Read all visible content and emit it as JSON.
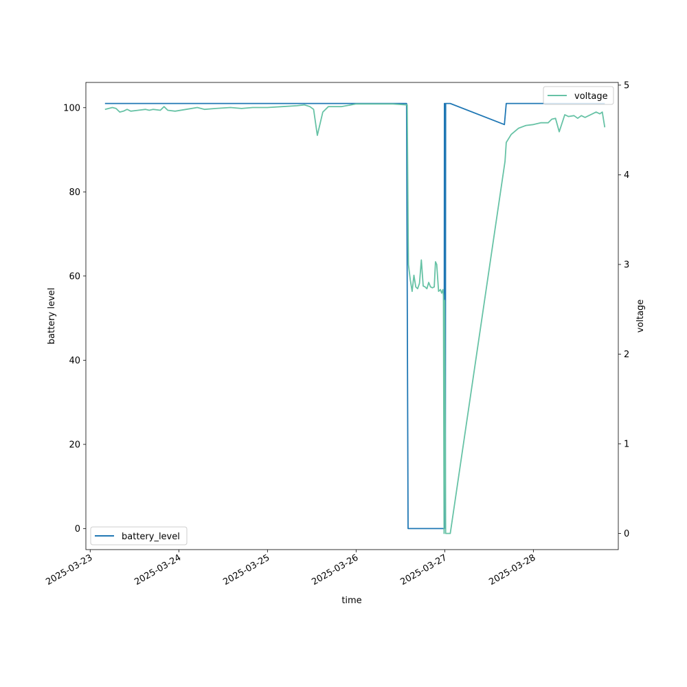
{
  "chart_data": {
    "type": "line",
    "xlabel": "time",
    "x_axis": {
      "type": "date",
      "range": [
        "2025-03-22T22:50",
        "2025-03-28T23:00"
      ],
      "tick_labels": [
        "2025-03-23",
        "2025-03-24",
        "2025-03-25",
        "2025-03-26",
        "2025-03-27",
        "2025-03-28"
      ],
      "tick_dates": [
        "2025-03-23T00:00",
        "2025-03-24T00:00",
        "2025-03-25T00:00",
        "2025-03-26T00:00",
        "2025-03-27T00:00",
        "2025-03-28T00:00"
      ]
    },
    "y_left": {
      "label": "battery level",
      "range": [
        -5,
        106
      ],
      "ticks": [
        0,
        20,
        40,
        60,
        80,
        100
      ]
    },
    "y_right": {
      "label": "voltage",
      "range": [
        -0.18,
        5.03
      ],
      "ticks": [
        0,
        1,
        2,
        3,
        4,
        5
      ]
    },
    "grid": false,
    "series": [
      {
        "name": "battery_level",
        "axis": "left",
        "color": "#1f77b4",
        "legend_position": "lower-left",
        "points": [
          [
            "2025-03-23T04:00",
            101
          ],
          [
            "2025-03-26T13:40",
            101
          ],
          [
            "2025-03-26T14:05",
            0
          ],
          [
            "2025-03-26T23:50",
            0
          ],
          [
            "2025-03-26T23:55",
            101
          ],
          [
            "2025-03-27T00:05",
            101
          ],
          [
            "2025-03-27T00:10",
            0
          ],
          [
            "2025-03-27T00:15",
            101
          ],
          [
            "2025-03-27T01:30",
            101
          ],
          [
            "2025-03-27T16:10",
            96
          ],
          [
            "2025-03-27T16:40",
            101
          ],
          [
            "2025-03-28T19:20",
            101
          ]
        ]
      },
      {
        "name": "voltage",
        "axis": "right",
        "color": "#66c2a5",
        "legend_position": "upper-right",
        "points": [
          [
            "2025-03-23T04:00",
            4.73
          ],
          [
            "2025-03-23T06:00",
            4.75
          ],
          [
            "2025-03-23T07:00",
            4.74
          ],
          [
            "2025-03-23T08:00",
            4.7
          ],
          [
            "2025-03-23T09:00",
            4.71
          ],
          [
            "2025-03-23T10:00",
            4.73
          ],
          [
            "2025-03-23T11:00",
            4.71
          ],
          [
            "2025-03-23T13:00",
            4.72
          ],
          [
            "2025-03-23T15:00",
            4.73
          ],
          [
            "2025-03-23T16:00",
            4.72
          ],
          [
            "2025-03-23T17:00",
            4.73
          ],
          [
            "2025-03-23T19:00",
            4.72
          ],
          [
            "2025-03-23T20:00",
            4.76
          ],
          [
            "2025-03-23T21:00",
            4.72
          ],
          [
            "2025-03-23T23:00",
            4.71
          ],
          [
            "2025-03-24T02:00",
            4.73
          ],
          [
            "2025-03-24T05:00",
            4.75
          ],
          [
            "2025-03-24T07:00",
            4.73
          ],
          [
            "2025-03-24T10:00",
            4.74
          ],
          [
            "2025-03-24T14:00",
            4.75
          ],
          [
            "2025-03-24T17:00",
            4.74
          ],
          [
            "2025-03-24T20:00",
            4.75
          ],
          [
            "2025-03-25T00:00",
            4.75
          ],
          [
            "2025-03-25T04:00",
            4.76
          ],
          [
            "2025-03-25T08:00",
            4.77
          ],
          [
            "2025-03-25T10:00",
            4.78
          ],
          [
            "2025-03-25T11:30",
            4.76
          ],
          [
            "2025-03-25T12:30",
            4.73
          ],
          [
            "2025-03-25T13:30",
            4.44
          ],
          [
            "2025-03-25T15:00",
            4.7
          ],
          [
            "2025-03-25T16:30",
            4.76
          ],
          [
            "2025-03-25T20:00",
            4.76
          ],
          [
            "2025-03-26T00:00",
            4.79
          ],
          [
            "2025-03-26T06:00",
            4.79
          ],
          [
            "2025-03-26T10:00",
            4.79
          ],
          [
            "2025-03-26T13:30",
            4.78
          ],
          [
            "2025-03-26T13:50",
            4.78
          ],
          [
            "2025-03-26T14:10",
            3.0
          ],
          [
            "2025-03-26T14:40",
            2.83
          ],
          [
            "2025-03-26T15:10",
            2.7
          ],
          [
            "2025-03-26T15:40",
            2.88
          ],
          [
            "2025-03-26T16:10",
            2.75
          ],
          [
            "2025-03-26T16:40",
            2.73
          ],
          [
            "2025-03-26T17:10",
            2.79
          ],
          [
            "2025-03-26T17:40",
            3.05
          ],
          [
            "2025-03-26T18:10",
            2.76
          ],
          [
            "2025-03-26T18:40",
            2.75
          ],
          [
            "2025-03-26T19:10",
            2.73
          ],
          [
            "2025-03-26T19:40",
            2.8
          ],
          [
            "2025-03-26T20:10",
            2.75
          ],
          [
            "2025-03-26T20:40",
            2.74
          ],
          [
            "2025-03-26T21:10",
            2.75
          ],
          [
            "2025-03-26T21:30",
            3.03
          ],
          [
            "2025-03-26T21:50",
            3.0
          ],
          [
            "2025-03-26T22:20",
            2.7
          ],
          [
            "2025-03-26T22:50",
            2.72
          ],
          [
            "2025-03-26T23:10",
            2.68
          ],
          [
            "2025-03-26T23:30",
            2.72
          ],
          [
            "2025-03-26T23:40",
            2.65
          ],
          [
            "2025-03-26T23:50",
            0
          ],
          [
            "2025-03-27T00:00",
            2.6
          ],
          [
            "2025-03-27T00:15",
            0
          ],
          [
            "2025-03-27T01:30",
            0
          ],
          [
            "2025-03-27T16:20",
            4.15
          ],
          [
            "2025-03-27T16:40",
            4.36
          ],
          [
            "2025-03-27T18:00",
            4.45
          ],
          [
            "2025-03-27T20:00",
            4.52
          ],
          [
            "2025-03-27T22:00",
            4.55
          ],
          [
            "2025-03-28T00:00",
            4.56
          ],
          [
            "2025-03-28T02:00",
            4.58
          ],
          [
            "2025-03-28T04:00",
            4.58
          ],
          [
            "2025-03-28T05:00",
            4.62
          ],
          [
            "2025-03-28T06:00",
            4.63
          ],
          [
            "2025-03-28T07:00",
            4.48
          ],
          [
            "2025-03-28T08:30",
            4.67
          ],
          [
            "2025-03-28T09:30",
            4.65
          ],
          [
            "2025-03-28T11:00",
            4.66
          ],
          [
            "2025-03-28T12:00",
            4.63
          ],
          [
            "2025-03-28T13:00",
            4.66
          ],
          [
            "2025-03-28T14:00",
            4.64
          ],
          [
            "2025-03-28T15:00",
            4.66
          ],
          [
            "2025-03-28T16:00",
            4.68
          ],
          [
            "2025-03-28T17:00",
            4.7
          ],
          [
            "2025-03-28T18:00",
            4.68
          ],
          [
            "2025-03-28T18:40",
            4.7
          ],
          [
            "2025-03-28T19:20",
            4.53
          ]
        ]
      }
    ]
  }
}
